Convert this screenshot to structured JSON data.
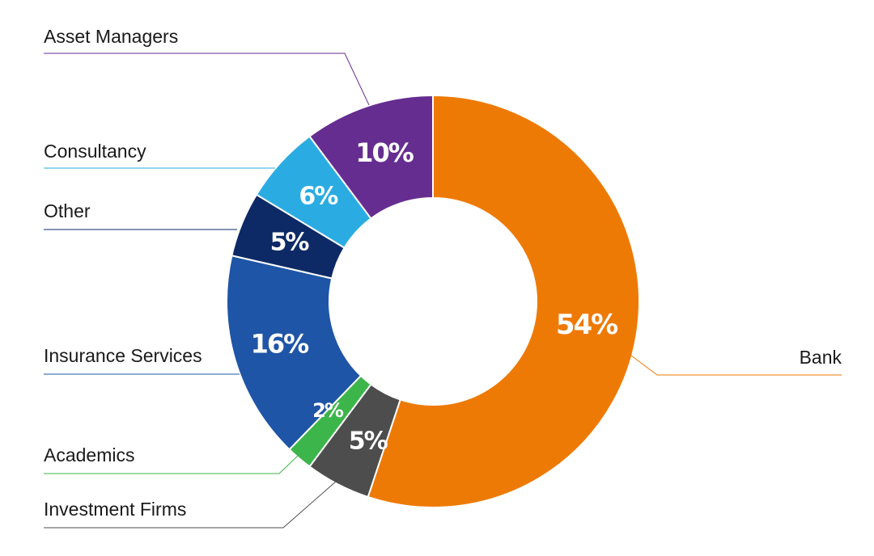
{
  "chart_data": {
    "type": "pie",
    "variant": "donut",
    "title": "",
    "categories": [
      "Bank",
      "Investment Firms",
      "Academics",
      "Insurance Services",
      "Other",
      "Consultancy",
      "Asset Managers"
    ],
    "values": [
      54,
      5,
      2,
      16,
      5,
      6,
      10
    ],
    "value_labels": [
      "54%",
      "5%",
      "2%",
      "16%",
      "5%",
      "6%",
      "10%"
    ],
    "colors": [
      "#ee7a06",
      "#4d4d4d",
      "#3cb54a",
      "#1f55a6",
      "#0d2a66",
      "#2aace2",
      "#662d91"
    ],
    "start": "top",
    "direction": "clockwise",
    "legend": "category labels with leader lines"
  }
}
